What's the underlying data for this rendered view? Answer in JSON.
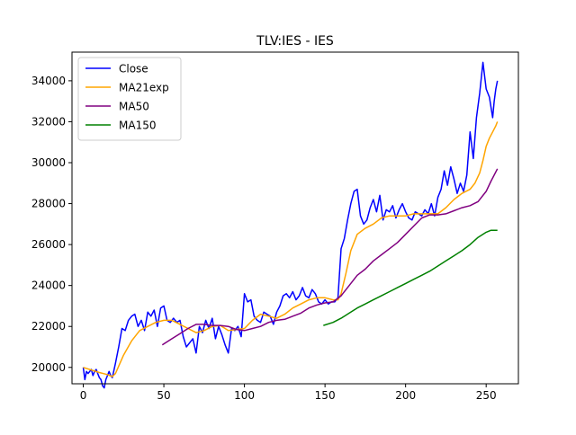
{
  "chart_data": {
    "type": "line",
    "title": "TLV:IES - IES",
    "xlabel": "",
    "ylabel": "",
    "xlim": [
      -7,
      270
    ],
    "ylim": [
      19200,
      35400
    ],
    "xticks": [
      0,
      50,
      100,
      150,
      200,
      250
    ],
    "yticks": [
      20000,
      22000,
      24000,
      26000,
      28000,
      30000,
      32000,
      34000
    ],
    "grid": false,
    "legend_position": "top-left",
    "series": [
      {
        "name": "Close",
        "color": "#0000ff",
        "x": [
          0,
          1,
          2,
          3,
          4,
          5,
          6,
          7,
          8,
          9,
          10,
          11,
          12,
          13,
          14,
          15,
          16,
          17,
          18,
          20,
          22,
          24,
          26,
          28,
          30,
          32,
          34,
          36,
          38,
          40,
          42,
          44,
          46,
          48,
          50,
          52,
          54,
          56,
          58,
          60,
          62,
          64,
          66,
          68,
          70,
          72,
          74,
          76,
          78,
          80,
          82,
          84,
          86,
          88,
          90,
          92,
          94,
          96,
          98,
          100,
          102,
          104,
          106,
          108,
          110,
          112,
          114,
          116,
          118,
          120,
          122,
          124,
          126,
          128,
          130,
          132,
          134,
          136,
          138,
          140,
          142,
          144,
          146,
          148,
          150,
          152,
          154,
          156,
          158,
          160,
          162,
          164,
          166,
          168,
          170,
          172,
          174,
          176,
          178,
          180,
          182,
          184,
          186,
          188,
          190,
          192,
          194,
          196,
          198,
          200,
          202,
          204,
          206,
          208,
          210,
          212,
          214,
          216,
          218,
          220,
          222,
          224,
          226,
          228,
          230,
          232,
          234,
          236,
          238,
          240,
          242,
          244,
          246,
          248,
          250,
          252,
          254,
          255,
          256,
          257
        ],
        "y": [
          20000,
          19400,
          19800,
          19700,
          19800,
          19900,
          19600,
          19800,
          19900,
          19700,
          19500,
          19400,
          19100,
          19000,
          19400,
          19600,
          19800,
          19600,
          19500,
          20200,
          21000,
          21900,
          21800,
          22300,
          22500,
          22600,
          22000,
          22300,
          21800,
          22700,
          22500,
          22800,
          22000,
          22900,
          23000,
          22300,
          22200,
          22400,
          22200,
          22300,
          21500,
          21000,
          21200,
          21400,
          20700,
          22000,
          21700,
          22300,
          21900,
          22400,
          21400,
          22000,
          21600,
          21100,
          20700,
          21900,
          21800,
          22000,
          21500,
          23600,
          23200,
          23300,
          22500,
          22300,
          22200,
          22700,
          22600,
          22500,
          22100,
          22700,
          23000,
          23500,
          23600,
          23400,
          23700,
          23300,
          23500,
          23900,
          23500,
          23400,
          23800,
          23600,
          23200,
          23100,
          23300,
          23100,
          23200,
          23200,
          23400,
          25800,
          26300,
          27200,
          28000,
          28600,
          28700,
          27400,
          27000,
          27200,
          27800,
          28200,
          27600,
          28400,
          27200,
          27700,
          27600,
          27900,
          27300,
          27700,
          28000,
          27600,
          27300,
          27200,
          27600,
          27500,
          27400,
          27700,
          27500,
          28000,
          27400,
          28300,
          28700,
          29600,
          28900,
          29800,
          29200,
          28500,
          29000,
          28600,
          29400,
          31500,
          30200,
          32200,
          33400,
          34900,
          33600,
          33200,
          32200,
          33000,
          33600,
          34000
        ]
      },
      {
        "name": "MA21exp",
        "color": "#ffa500",
        "x": [
          0,
          10,
          15,
          18,
          20,
          25,
          30,
          35,
          40,
          45,
          50,
          55,
          60,
          65,
          70,
          75,
          80,
          85,
          90,
          95,
          100,
          105,
          110,
          115,
          120,
          125,
          130,
          135,
          140,
          145,
          150,
          155,
          158,
          160,
          163,
          166,
          170,
          175,
          180,
          185,
          190,
          195,
          200,
          205,
          210,
          215,
          220,
          225,
          230,
          235,
          240,
          243,
          246,
          248,
          250,
          252,
          254,
          256,
          257
        ],
        "y": [
          20000,
          19750,
          19650,
          19550,
          19700,
          20600,
          21300,
          21800,
          22000,
          22200,
          22300,
          22300,
          22100,
          21900,
          21700,
          21800,
          22000,
          22050,
          21800,
          21850,
          21900,
          22300,
          22600,
          22500,
          22400,
          22600,
          22900,
          23100,
          23300,
          23400,
          23400,
          23300,
          23300,
          23600,
          24600,
          25700,
          26500,
          26800,
          27000,
          27300,
          27400,
          27400,
          27400,
          27500,
          27500,
          27500,
          27500,
          27800,
          28200,
          28500,
          28700,
          29000,
          29500,
          30100,
          30800,
          31200,
          31500,
          31800,
          32000
        ]
      },
      {
        "name": "MA50",
        "color": "#800080",
        "x": [
          49,
          55,
          60,
          65,
          70,
          75,
          80,
          85,
          90,
          95,
          100,
          105,
          110,
          115,
          120,
          125,
          130,
          135,
          140,
          145,
          150,
          155,
          160,
          165,
          170,
          175,
          180,
          185,
          190,
          195,
          200,
          205,
          210,
          215,
          220,
          225,
          230,
          235,
          240,
          245,
          250,
          253,
          257
        ],
        "y": [
          21100,
          21400,
          21650,
          21900,
          22100,
          22100,
          22050,
          22050,
          22000,
          21850,
          21800,
          21900,
          22000,
          22200,
          22300,
          22350,
          22500,
          22650,
          22900,
          23050,
          23150,
          23200,
          23500,
          24000,
          24500,
          24800,
          25200,
          25500,
          25800,
          26100,
          26500,
          26900,
          27300,
          27450,
          27450,
          27500,
          27650,
          27800,
          27900,
          28100,
          28600,
          29100,
          29700
        ]
      },
      {
        "name": "MA150",
        "color": "#008000",
        "x": [
          149,
          155,
          160,
          165,
          170,
          175,
          180,
          185,
          190,
          195,
          200,
          205,
          210,
          215,
          220,
          225,
          230,
          235,
          240,
          245,
          250,
          253,
          257
        ],
        "y": [
          22050,
          22200,
          22400,
          22650,
          22900,
          23100,
          23300,
          23500,
          23700,
          23900,
          24100,
          24300,
          24500,
          24700,
          24950,
          25200,
          25450,
          25700,
          26000,
          26350,
          26600,
          26700,
          26700
        ]
      }
    ]
  }
}
